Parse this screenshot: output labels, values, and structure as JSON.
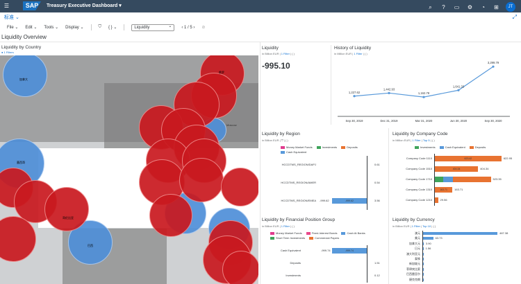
{
  "shell": {
    "logo": "SAP",
    "title": "Treasury Executive Dashboard ▾",
    "avatar": "JT"
  },
  "variant": "标准 ⌄",
  "toolbar": {
    "file": "File ⌄",
    "edit": "Edit ⌄",
    "tools": "Tools ⌄",
    "display": "Display ⌄",
    "filter_icon": "funnel-icon",
    "braces": "{ } ⌄",
    "page_select": "Liquidity",
    "pager": "‹  1 / 5  ›"
  },
  "page_title": "Liquidity Overview",
  "map_panel": {
    "title": "Liquidity by Country",
    "filters": "1 Filters",
    "labels": {
      "canada": "加拿大",
      "mexico": "墨西哥",
      "colombia": "哥伦比亚",
      "brazil": "巴西",
      "russia": "俄罗",
      "moscow": "Moscow"
    }
  },
  "liquidity": {
    "title": "Liquidity",
    "unit": "in Billion EUR",
    "filter": "1 Filter",
    "braces": "( )",
    "value": "-995.10"
  },
  "history": {
    "title": "History of Liquidity",
    "unit": "in Million EUR",
    "filter": "1 Filter",
    "braces": "( )",
    "chart_data": {
      "type": "line",
      "x": [
        "Sep 30, 2019",
        "Dec 31, 2019",
        "Mar 31, 2020",
        "Jun 30, 2020",
        "Sep 30, 2020"
      ],
      "values": [
        1227.62,
        1442.93,
        1162.78,
        1641.33,
        3299.79
      ],
      "value_labels": [
        "1,227.62",
        "1,442.93",
        "1,162.78",
        "1,641.33",
        "3,299.79"
      ]
    }
  },
  "region": {
    "title": "Liquidity by Region",
    "unit": "in Billion EUR",
    "filter_icon": "funnel-icon",
    "braces": "( )",
    "legend": [
      {
        "name": "Money Market Funds",
        "color": "#e03c8e"
      },
      {
        "name": "Investments",
        "color": "#3fa45b"
      },
      {
        "name": "Deposits",
        "color": "#e87331"
      },
      {
        "name": "Cash Equivalent",
        "color": "#5899da"
      }
    ],
    "chart_data": {
      "type": "bar",
      "categories": [
        "HCCDTMS_REGION/DAPJ",
        "HCCDTMS_REGION/AMER",
        "HCCDTMS_REGION/EMEA"
      ],
      "values": [
        0.61,
        0.54,
        -999.62
      ],
      "totals": [
        "0.61",
        "0.54",
        "3.56"
      ],
      "bar_labels": [
        "",
        "",
        "-999.62"
      ],
      "left_labels": [
        "",
        "",
        "-999.62"
      ]
    }
  },
  "company": {
    "title": "Liquidity by Company Code",
    "unit": "in Million EUR",
    "filter": "1 Filter",
    "top": "Top 5",
    "braces": "( )",
    "legend": [
      {
        "name": "Investments",
        "color": "#3fa45b"
      },
      {
        "name": "Cash Equivalent",
        "color": "#5899da"
      },
      {
        "name": "Deposits",
        "color": "#e87331"
      }
    ],
    "chart_data": {
      "type": "bar",
      "categories": [
        "Company Code 1110",
        "Company Code 1510",
        "Company Code 1710",
        "Company Code 1310",
        "Company Code 1210"
      ],
      "values": [
        622.95,
        404.34,
        523.35,
        163.71,
        29.56
      ],
      "totals": [
        "622.95",
        "404.34",
        "523.35",
        "163.71",
        "29.56"
      ],
      "segment_labels": [
        "623.42",
        "404.34",
        "",
        "163.71",
        ""
      ]
    }
  },
  "fpg": {
    "title": "Liquidity by Financial Position Group",
    "unit": "in Billion EUR",
    "filter": "1 Filter",
    "braces": "( )",
    "legend": [
      {
        "name": "Money Market Funds",
        "color": "#e03c8e"
      },
      {
        "name": "Fixed-Interest Bonds",
        "color": "#e94a8b"
      },
      {
        "name": "Cash At Banks",
        "color": "#5899da"
      },
      {
        "name": "Short Term Investments",
        "color": "#3fa45b"
      },
      {
        "name": "Commercial Papers",
        "color": "#e87331"
      }
    ],
    "chart_data": {
      "type": "bar",
      "categories": [
        "Cash Equivalent",
        "Deposits",
        "Investments"
      ],
      "values": [
        -999.74,
        1.51,
        0.12
      ],
      "totals": [
        "",
        "1.51",
        "0.12"
      ],
      "left_labels": [
        "-999.74",
        "",
        ""
      ],
      "bar_labels": [
        "-999.74",
        "",
        ""
      ]
    }
  },
  "currency": {
    "title": "Liquidity by Currency",
    "unit": "in Billion EUR",
    "filter": "1 Filter",
    "top": "Top 10",
    "braces": "( )",
    "chart_data": {
      "type": "bar",
      "categories": [
        "澳元",
        "美元",
        "加拿大元",
        "日元",
        "澳大利亚元",
        "泰铢",
        "新加坡元",
        "菲律宾比索",
        "巴西雷亚尔",
        "捷克克朗"
      ],
      "values": [
        467.38,
        63.73,
        3.9,
        1.56,
        1.2,
        0.8,
        0.6,
        0.4,
        0.3,
        0.2
      ],
      "value_labels": [
        "467.38",
        "63.73",
        "3.90",
        "1.56",
        "",
        "",
        "",
        "",
        "",
        ""
      ]
    }
  }
}
